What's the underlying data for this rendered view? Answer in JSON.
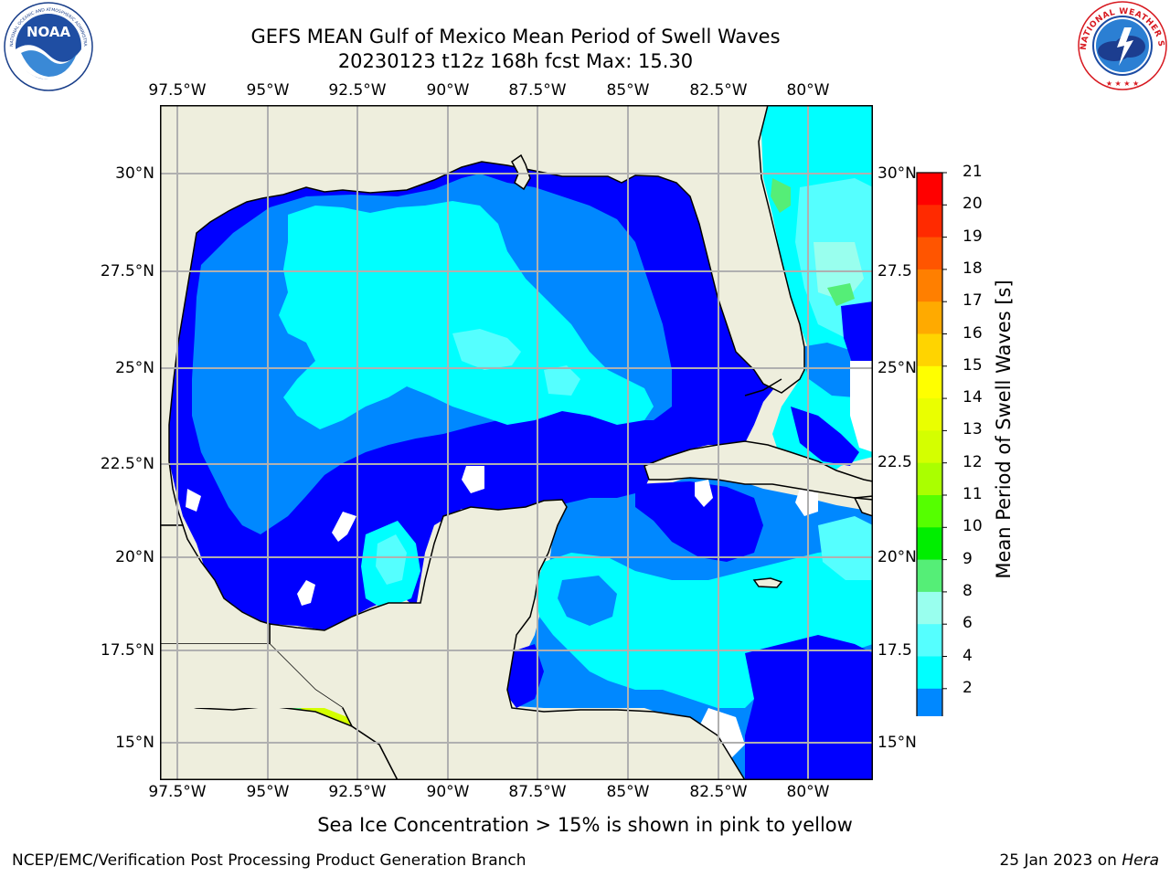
{
  "header": {
    "title_line1": "GEFS MEAN Gulf of Mexico Mean Period of Swell Waves",
    "title_line2": "20230123 t12z 168h fcst   Max: 15.30"
  },
  "logos": {
    "noaa_text": "NOAA",
    "noaa_ring_text": "NATIONAL OCEANIC AND ATMOSPHERIC ADMINISTRATION · U.S. DEPARTMENT OF COMMERCE",
    "nws_ring_text": "NATIONAL WEATHER SERVICE"
  },
  "map": {
    "lon_labels": [
      "97.5°W",
      "95°W",
      "92.5°W",
      "90°W",
      "87.5°W",
      "85°W",
      "82.5°W",
      "80°W"
    ],
    "lat_labels_left": [
      "30°N",
      "27.5°N",
      "25°N",
      "22.5°N",
      "20°N",
      "17.5°N",
      "15°N"
    ],
    "lat_labels_right": [
      "30°N",
      "27.5",
      "25°N",
      "22.5",
      "20°N",
      "17.5",
      "15°N"
    ],
    "colors": {
      "land": "#eeeedd",
      "ocean_missing": "#ffffff",
      "grid": "#b0b0b0",
      "coast": "#000000"
    }
  },
  "colorbar": {
    "label": "Mean Period of Swell Waves [s]",
    "ticks": [
      "21",
      "20",
      "19",
      "18",
      "17",
      "16",
      "15",
      "14",
      "13",
      "12",
      "11",
      "10",
      "9",
      "8",
      "6",
      "4",
      "2"
    ],
    "bands": [
      "#ff0000",
      "#ff2a00",
      "#ff5500",
      "#ff7f00",
      "#ffaa00",
      "#ffd400",
      "#ffff00",
      "#eaff00",
      "#d4ff00",
      "#aaff00",
      "#55ff00",
      "#00ee00",
      "#55ee77",
      "#99ffee",
      "#55ffff",
      "#00ffff",
      "#0088ff"
    ],
    "extend_color": "#0000ff"
  },
  "footer": {
    "note": "Sea Ice Concentration > 15% is shown in pink to yellow",
    "left": "NCEP/EMC/Verification Post Processing Product Generation Branch",
    "right_prefix": "25 Jan 2023 on ",
    "right_host": "Hera"
  }
}
